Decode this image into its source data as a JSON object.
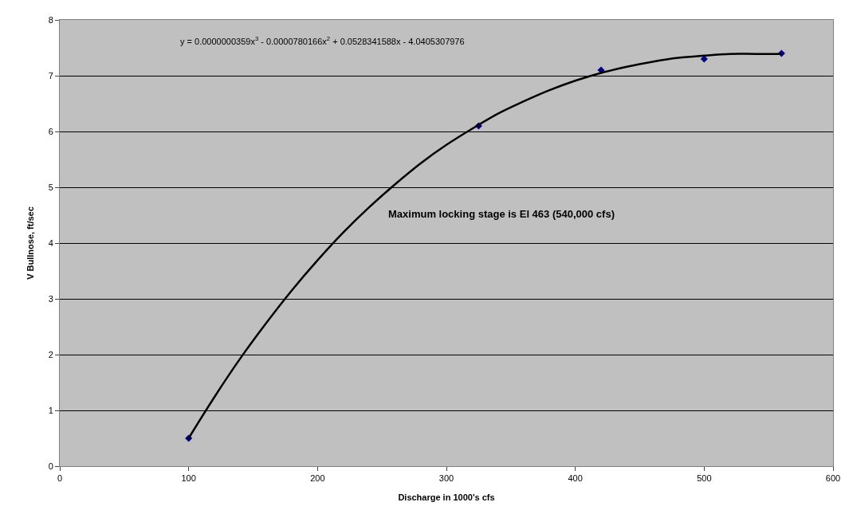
{
  "chart_data": {
    "type": "scatter",
    "xlabel": "Discharge in 1000's cfs",
    "ylabel": "V Bullnose, ft/sec",
    "annotations": [
      "y = 0.0000000359x$^{3}$ - 0.0000780166x$^{2}$ + 0.0528341588x - 4.0405307976",
      "Maximum locking stage is El 463 (540,000 cfs)"
    ],
    "x": [
      100,
      325,
      420,
      500,
      560
    ],
    "series": [
      {
        "color": "#000080",
        "values": [
          0.5,
          6.1,
          7.1,
          7.3,
          7.4
        ],
        "marker": "diamond"
      },
      {
        "type": "line",
        "color": "#000000",
        "marker": "none",
        "x": [
          100,
          120,
          140,
          160,
          180,
          200,
          220,
          240,
          260,
          280,
          300,
          320,
          340,
          360,
          380,
          400,
          420,
          440,
          460,
          480,
          500,
          520,
          540,
          560
        ],
        "values": [
          0.5,
          1.24,
          1.93,
          2.56,
          3.15,
          3.69,
          4.19,
          4.64,
          5.05,
          5.43,
          5.76,
          6.05,
          6.32,
          6.54,
          6.74,
          6.91,
          7.05,
          7.16,
          7.25,
          7.32,
          7.36,
          7.39,
          7.39,
          7.39
        ]
      }
    ],
    "xlim": [
      0,
      600
    ],
    "xticks": [
      0,
      100,
      200,
      300,
      400,
      500,
      600
    ],
    "ylim": [
      0,
      8
    ],
    "yticks": [
      0,
      1,
      2,
      3,
      4,
      5,
      6,
      7,
      8
    ],
    "grid": "y"
  }
}
